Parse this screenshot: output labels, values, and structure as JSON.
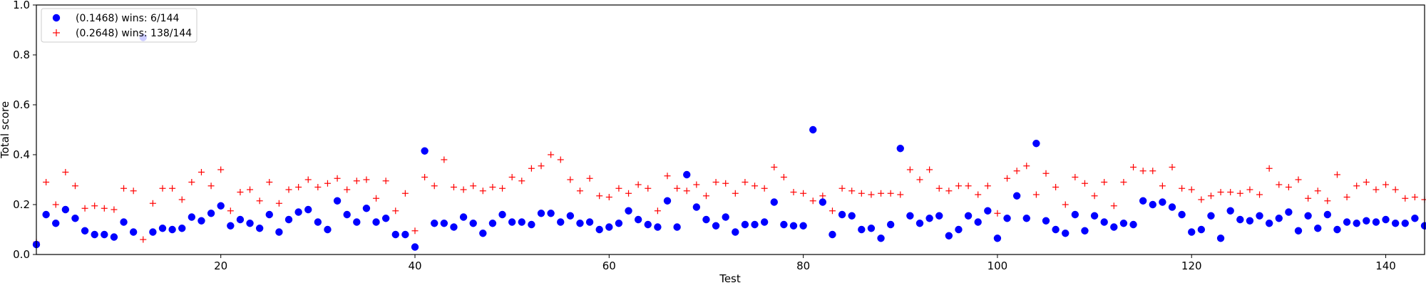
{
  "chart_data": {
    "type": "scatter",
    "xlabel": "Test",
    "ylabel": "Total score",
    "xlim": [
      1,
      144
    ],
    "ylim": [
      0.0,
      1.0
    ],
    "xticks": [
      20,
      40,
      60,
      80,
      100,
      120,
      140
    ],
    "yticks": [
      0.0,
      0.2,
      0.4,
      0.6,
      0.8,
      1.0
    ],
    "ytick_labels": [
      "0.0",
      "0.2",
      "0.4",
      "0.6",
      "0.8",
      "1.0"
    ],
    "grid": false,
    "legend_position": "top-left",
    "series": [
      {
        "name": "(0.1468) wins: 6/144",
        "marker": "circle",
        "color": "#0000ff",
        "x": [
          1,
          2,
          3,
          4,
          5,
          6,
          7,
          8,
          9,
          10,
          11,
          12,
          13,
          14,
          15,
          16,
          17,
          18,
          19,
          20,
          21,
          22,
          23,
          24,
          25,
          26,
          27,
          28,
          29,
          30,
          31,
          32,
          33,
          34,
          35,
          36,
          37,
          38,
          39,
          40,
          41,
          42,
          43,
          44,
          45,
          46,
          47,
          48,
          49,
          50,
          51,
          52,
          53,
          54,
          55,
          56,
          57,
          58,
          59,
          60,
          61,
          62,
          63,
          64,
          65,
          66,
          67,
          68,
          69,
          70,
          71,
          72,
          73,
          74,
          75,
          76,
          77,
          78,
          79,
          80,
          81,
          82,
          83,
          84,
          85,
          86,
          87,
          88,
          89,
          90,
          91,
          92,
          93,
          94,
          95,
          96,
          97,
          98,
          99,
          100,
          101,
          102,
          103,
          104,
          105,
          106,
          107,
          108,
          109,
          110,
          111,
          112,
          113,
          114,
          115,
          116,
          117,
          118,
          119,
          120,
          121,
          122,
          123,
          124,
          125,
          126,
          127,
          128,
          129,
          130,
          131,
          132,
          133,
          134,
          135,
          136,
          137,
          138,
          139,
          140,
          141,
          142,
          143,
          144
        ],
        "y": [
          0.04,
          0.16,
          0.125,
          0.18,
          0.145,
          0.095,
          0.08,
          0.08,
          0.07,
          0.13,
          0.09,
          0.87,
          0.09,
          0.105,
          0.1,
          0.105,
          0.15,
          0.135,
          0.165,
          0.195,
          0.115,
          0.14,
          0.125,
          0.105,
          0.16,
          0.09,
          0.14,
          0.17,
          0.18,
          0.13,
          0.1,
          0.215,
          0.16,
          0.13,
          0.185,
          0.13,
          0.145,
          0.08,
          0.08,
          0.03,
          0.415,
          0.125,
          0.125,
          0.11,
          0.15,
          0.125,
          0.085,
          0.125,
          0.16,
          0.13,
          0.13,
          0.12,
          0.165,
          0.165,
          0.13,
          0.155,
          0.125,
          0.13,
          0.1,
          0.11,
          0.125,
          0.175,
          0.14,
          0.12,
          0.11,
          0.215,
          0.11,
          0.32,
          0.19,
          0.14,
          0.115,
          0.15,
          0.09,
          0.12,
          0.12,
          0.13,
          0.21,
          0.12,
          0.115,
          0.115,
          0.5,
          0.21,
          0.08,
          0.16,
          0.155,
          0.1,
          0.105,
          0.065,
          0.12,
          0.425,
          0.155,
          0.125,
          0.145,
          0.155,
          0.075,
          0.1,
          0.155,
          0.13,
          0.175,
          0.065,
          0.145,
          0.235,
          0.145,
          0.445,
          0.135,
          0.1,
          0.085,
          0.16,
          0.095,
          0.155,
          0.13,
          0.11,
          0.125,
          0.12,
          0.215,
          0.2,
          0.21,
          0.19,
          0.16,
          0.09,
          0.1,
          0.155,
          0.065,
          0.175,
          0.14,
          0.135,
          0.155,
          0.125,
          0.145,
          0.17,
          0.095,
          0.155,
          0.105,
          0.16,
          0.1,
          0.13,
          0.125,
          0.135,
          0.13,
          0.14,
          0.125,
          0.125,
          0.145,
          0.115
        ]
      },
      {
        "name": "(0.2648) wins: 138/144",
        "marker": "plus",
        "color": "#ff0000",
        "x": [
          1,
          2,
          3,
          4,
          5,
          6,
          7,
          8,
          9,
          10,
          11,
          12,
          13,
          14,
          15,
          16,
          17,
          18,
          19,
          20,
          21,
          22,
          23,
          24,
          25,
          26,
          27,
          28,
          29,
          30,
          31,
          32,
          33,
          34,
          35,
          36,
          37,
          38,
          39,
          40,
          41,
          42,
          43,
          44,
          45,
          46,
          47,
          48,
          49,
          50,
          51,
          52,
          53,
          54,
          55,
          56,
          57,
          58,
          59,
          60,
          61,
          62,
          63,
          64,
          65,
          66,
          67,
          68,
          69,
          70,
          71,
          72,
          73,
          74,
          75,
          76,
          77,
          78,
          79,
          80,
          81,
          82,
          83,
          84,
          85,
          86,
          87,
          88,
          89,
          90,
          91,
          92,
          93,
          94,
          95,
          96,
          97,
          98,
          99,
          100,
          101,
          102,
          103,
          104,
          105,
          106,
          107,
          108,
          109,
          110,
          111,
          112,
          113,
          114,
          115,
          116,
          117,
          118,
          119,
          120,
          121,
          122,
          123,
          124,
          125,
          126,
          127,
          128,
          129,
          130,
          131,
          132,
          133,
          134,
          135,
          136,
          137,
          138,
          139,
          140,
          141,
          142,
          143,
          144
        ],
        "y": [
          0.05,
          0.29,
          0.2,
          0.33,
          0.275,
          0.185,
          0.195,
          0.185,
          0.18,
          0.265,
          0.255,
          0.06,
          0.205,
          0.265,
          0.265,
          0.22,
          0.29,
          0.33,
          0.275,
          0.34,
          0.175,
          0.25,
          0.26,
          0.215,
          0.29,
          0.205,
          0.26,
          0.27,
          0.3,
          0.27,
          0.285,
          0.305,
          0.26,
          0.295,
          0.3,
          0.225,
          0.295,
          0.175,
          0.245,
          0.095,
          0.31,
          0.275,
          0.38,
          0.27,
          0.26,
          0.275,
          0.255,
          0.27,
          0.265,
          0.31,
          0.295,
          0.345,
          0.355,
          0.4,
          0.38,
          0.3,
          0.255,
          0.305,
          0.235,
          0.23,
          0.265,
          0.245,
          0.28,
          0.265,
          0.175,
          0.315,
          0.265,
          0.255,
          0.28,
          0.235,
          0.29,
          0.285,
          0.245,
          0.29,
          0.275,
          0.265,
          0.35,
          0.31,
          0.25,
          0.245,
          0.215,
          0.235,
          0.175,
          0.265,
          0.255,
          0.245,
          0.24,
          0.245,
          0.245,
          0.24,
          0.34,
          0.3,
          0.34,
          0.265,
          0.255,
          0.275,
          0.275,
          0.24,
          0.275,
          0.165,
          0.305,
          0.335,
          0.355,
          0.24,
          0.325,
          0.27,
          0.2,
          0.31,
          0.285,
          0.235,
          0.29,
          0.195,
          0.29,
          0.35,
          0.335,
          0.335,
          0.275,
          0.35,
          0.265,
          0.26,
          0.22,
          0.235,
          0.25,
          0.25,
          0.245,
          0.26,
          0.24,
          0.345,
          0.28,
          0.27,
          0.3,
          0.225,
          0.255,
          0.215,
          0.32,
          0.23,
          0.275,
          0.29,
          0.26,
          0.28,
          0.26,
          0.225,
          0.23,
          0.22
        ]
      }
    ]
  }
}
